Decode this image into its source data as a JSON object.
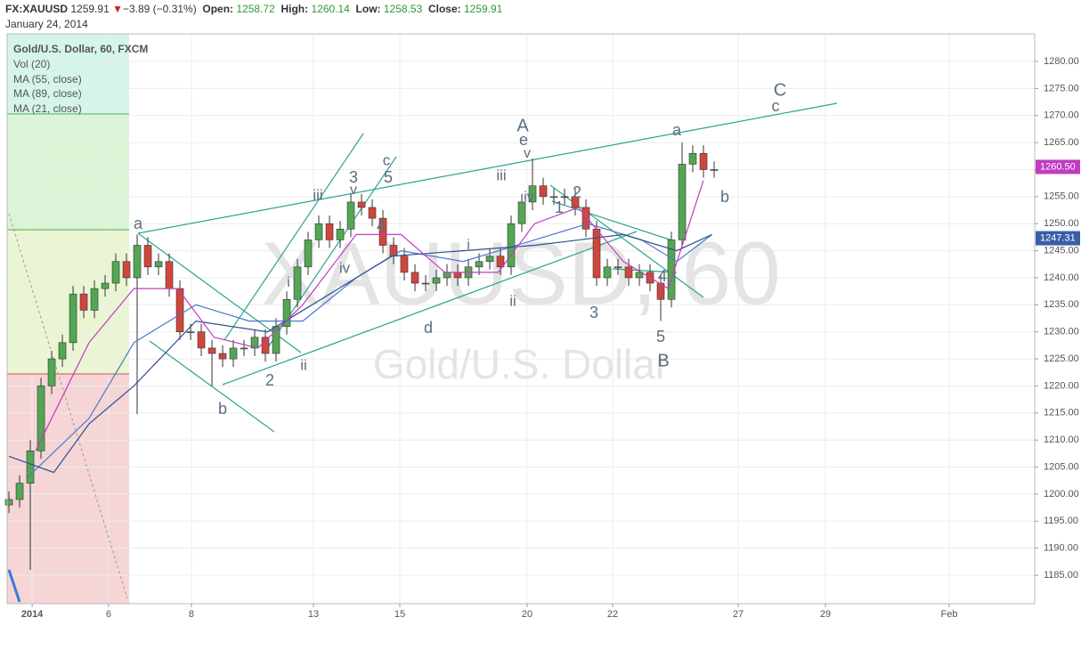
{
  "header": {
    "symbol": "FX:XAUUSD",
    "last": "1259.91",
    "arrow": "▼",
    "change": "−3.89 (−0.31%)",
    "open_label": "Open:",
    "open": "1258.72",
    "high_label": "High:",
    "high": "1260.14",
    "low_label": "Low:",
    "low": "1258.53",
    "close_label": "Close:",
    "close": "1259.91",
    "date": "January 24, 2014"
  },
  "chart_data": {
    "type": "candlestick",
    "title": "Gold/U.S. Dollar, 60, FXCM",
    "studies": [
      "Vol (20)"
    ],
    "watermark": "XAUUSD, 60",
    "watermark_subtitle": "Gold/U.S. Dollar",
    "up_color": "#53a653",
    "down_color": "#d0463c",
    "wick_color": "#333333",
    "x": [
      0,
      1,
      2,
      3,
      4,
      5,
      6,
      7,
      8,
      9,
      10,
      11,
      12,
      13,
      14,
      15,
      16,
      17,
      18,
      19,
      20,
      21,
      22,
      23,
      24,
      25,
      26,
      27,
      28,
      29,
      30,
      31,
      32,
      33,
      34,
      35,
      36,
      37,
      38,
      39,
      40,
      41,
      42,
      43,
      44,
      45,
      46,
      47,
      48,
      49,
      50,
      51,
      52,
      53,
      54,
      55,
      56,
      57,
      58,
      59,
      60,
      61,
      62,
      63,
      64,
      65,
      66
    ],
    "open": [
      1198,
      1199,
      1202,
      1208,
      1220,
      1225,
      1228,
      1237,
      1234,
      1238,
      1239,
      1243,
      1240,
      1246,
      1242,
      1243,
      1238,
      1230,
      1230,
      1227,
      1226,
      1225,
      1227,
      1227,
      1229,
      1226,
      1231,
      1236,
      1242,
      1247,
      1250,
      1247,
      1249,
      1254,
      1253,
      1251,
      1246,
      1244,
      1241,
      1239,
      1239,
      1240,
      1241,
      1240,
      1242,
      1243,
      1244,
      1242,
      1250,
      1254,
      1257,
      1255,
      1255,
      1255,
      1253,
      1249,
      1240,
      1242,
      1242,
      1240,
      1241,
      1239,
      1236,
      1247,
      1261,
      1263,
      1260
    ],
    "high": [
      1200.5,
      1203.5,
      1210,
      1221.5,
      1226.5,
      1229.5,
      1238.5,
      1238.5,
      1239.5,
      1240.5,
      1244.5,
      1244.5,
      1248,
      1247.5,
      1244.5,
      1244.5,
      1239.5,
      1231.5,
      1231.5,
      1228.5,
      1227.5,
      1228.5,
      1228.5,
      1230.5,
      1230.5,
      1232.5,
      1237.5,
      1243.5,
      1248.5,
      1251.5,
      1251.5,
      1250.5,
      1255.5,
      1255.5,
      1254.5,
      1252.5,
      1247.5,
      1245.5,
      1242.5,
      1240.5,
      1241.5,
      1242.5,
      1242.5,
      1243.5,
      1244.5,
      1245.5,
      1245.5,
      1251.5,
      1255.5,
      1262,
      1258.5,
      1256.5,
      1256.5,
      1256.5,
      1254.5,
      1250.5,
      1243.5,
      1243.5,
      1243.5,
      1242.5,
      1242.5,
      1240.5,
      1248.5,
      1265,
      1264.5,
      1264.5,
      1261.5
    ],
    "low": [
      1196.5,
      1197.5,
      1186,
      1206.5,
      1218.5,
      1223.5,
      1226.5,
      1232.5,
      1232.5,
      1236.5,
      1237.5,
      1238.5,
      1238.5,
      1240.5,
      1240.5,
      1236.5,
      1228.5,
      1228.5,
      1225.5,
      1220,
      1223.5,
      1223.5,
      1225.5,
      1225.5,
      1224.5,
      1224.5,
      1229.5,
      1234.5,
      1240.5,
      1245.5,
      1245.5,
      1245.5,
      1247.5,
      1251.5,
      1249.5,
      1244.5,
      1242.5,
      1239.5,
      1237.5,
      1237.5,
      1237.5,
      1238.5,
      1238.5,
      1238.5,
      1240.5,
      1241.5,
      1240.5,
      1240.5,
      1248.5,
      1252.5,
      1253.5,
      1253.5,
      1253.5,
      1251.5,
      1247.5,
      1238.5,
      1238.5,
      1240.5,
      1238.5,
      1238.5,
      1237.5,
      1232,
      1234.5,
      1245.5,
      1259.5,
      1258.5,
      1258.5
    ],
    "close": [
      1199,
      1202,
      1208,
      1220,
      1225,
      1228,
      1237,
      1234,
      1238,
      1239,
      1243,
      1240,
      1246,
      1242,
      1243,
      1238,
      1230,
      1230,
      1227,
      1226,
      1225,
      1227,
      1227,
      1229,
      1226,
      1231,
      1236,
      1242,
      1247,
      1250,
      1247,
      1249,
      1254,
      1253,
      1251,
      1246,
      1244,
      1241,
      1239,
      1239,
      1240,
      1241,
      1240,
      1242,
      1243,
      1244,
      1242,
      1250,
      1254,
      1257,
      1255,
      1255,
      1255,
      1253,
      1249,
      1240,
      1242,
      1242,
      1240,
      1241,
      1239,
      1236,
      1247,
      1261,
      1263,
      1260,
      1260
    ],
    "series": [
      {
        "name": "MA (55, close)",
        "color": "#4a78c8",
        "x": [
          1.7,
          7.5,
          11.7,
          17.5,
          22.5,
          27.5,
          32.5,
          36.7,
          42.5,
          49.2,
          54.2,
          59.2,
          62.5,
          65.8
        ],
        "values": [
          1203,
          1214,
          1228,
          1235,
          1232,
          1232,
          1240,
          1245,
          1243,
          1247,
          1250,
          1247,
          1243,
          1248
        ]
      },
      {
        "name": "MA (89, close)",
        "color": "#2f4f8f",
        "x": [
          0,
          4.2,
          7.5,
          11.7,
          17.5,
          24.2,
          29.2,
          35.8,
          42.5,
          49.2,
          57.5,
          62.5,
          65.8
        ],
        "values": [
          1207,
          1204,
          1213,
          1220,
          1232,
          1230,
          1236,
          1244,
          1245,
          1246,
          1248,
          1245,
          1248
        ]
      },
      {
        "name": "MA (21, close)",
        "color": "#c03cc0",
        "x": [
          2.5,
          7.5,
          11.7,
          15.8,
          19.2,
          23.3,
          27.5,
          32.5,
          36.7,
          40.8,
          45.8,
          49.2,
          53.3,
          57.5,
          61.7,
          65
        ],
        "values": [
          1208,
          1228,
          1238,
          1238,
          1229,
          1227,
          1235,
          1248,
          1248,
          1241,
          1241,
          1250,
          1253,
          1243,
          1238,
          1258
        ]
      }
    ],
    "price_tags": [
      {
        "value": 1260.5,
        "label": "1260.50",
        "color": "#c03cc0"
      },
      {
        "value": 1247.31,
        "label": "1247.31",
        "color": "#3a5ea8"
      }
    ],
    "annotations": [
      "a",
      "b",
      "2",
      "ii",
      "iii",
      "3",
      "v",
      "iv",
      "4",
      "c",
      "5",
      "d",
      "i",
      "i",
      "iii",
      "A",
      "e",
      "v",
      "iv",
      "ii",
      "2",
      "1",
      "3",
      "4",
      "5",
      "B",
      "a",
      "b",
      "C",
      "c"
    ],
    "xlim": [
      -0.17,
      96
    ],
    "xticks": [
      {
        "value": 2.17,
        "label": "2014"
      },
      {
        "value": 9.33,
        "label": "6"
      },
      {
        "value": 17.08,
        "label": "8"
      },
      {
        "value": 28.5,
        "label": "13"
      },
      {
        "value": 36.58,
        "label": "15"
      },
      {
        "value": 48.5,
        "label": "20"
      },
      {
        "value": 56.5,
        "label": "22"
      },
      {
        "value": 68.25,
        "label": "27"
      },
      {
        "value": 76.42,
        "label": "29"
      },
      {
        "value": 88,
        "label": "Feb"
      }
    ],
    "ylim": [
      1179.74,
      1285.1
    ],
    "yticks": [
      {
        "value": 1185,
        "label": "1185.00"
      },
      {
        "value": 1190,
        "label": "1190.00"
      },
      {
        "value": 1195,
        "label": "1195.00"
      },
      {
        "value": 1200,
        "label": "1200.00"
      },
      {
        "value": 1205,
        "label": "1205.00"
      },
      {
        "value": 1210,
        "label": "1210.00"
      },
      {
        "value": 1215,
        "label": "1215.00"
      },
      {
        "value": 1220,
        "label": "1220.00"
      },
      {
        "value": 1225,
        "label": "1225.00"
      },
      {
        "value": 1230,
        "label": "1230.00"
      },
      {
        "value": 1235,
        "label": "1235.00"
      },
      {
        "value": 1240,
        "label": "1240.00"
      },
      {
        "value": 1245,
        "label": "1245.00"
      },
      {
        "value": 1250,
        "label": "1250.00"
      },
      {
        "value": 1255,
        "label": "1255.00"
      },
      {
        "value": 1260,
        "label": "1260.00"
      },
      {
        "value": 1265,
        "label": "1265.00"
      },
      {
        "value": 1270,
        "label": "1270.00"
      },
      {
        "value": 1275,
        "label": "1275.00"
      },
      {
        "value": 1280,
        "label": "1280.00"
      }
    ],
    "grid": true
  }
}
